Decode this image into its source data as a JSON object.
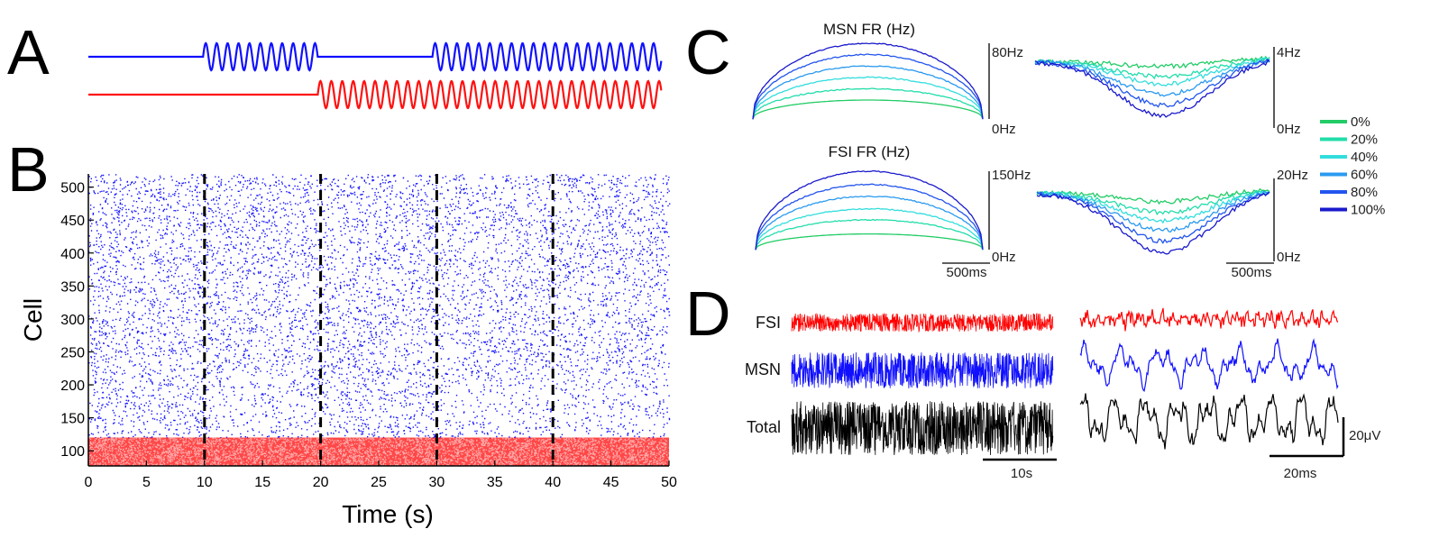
{
  "panels": {
    "a": "A",
    "b": "B",
    "c": "C",
    "d": "D"
  },
  "chart_data": [
    {
      "id": "A",
      "type": "line",
      "series": [
        {
          "name": "",
          "color": "#1010ff",
          "segments": [
            {
              "x": [
                0,
                10
              ],
              "mode": "flat"
            },
            {
              "x": [
                10,
                20
              ],
              "mode": "osc"
            },
            {
              "x": [
                20,
                30
              ],
              "mode": "flat"
            },
            {
              "x": [
                30,
                50
              ],
              "mode": "osc"
            }
          ]
        },
        {
          "name": "",
          "color": "#ff1010",
          "segments": [
            {
              "x": [
                0,
                20
              ],
              "mode": "flat"
            },
            {
              "x": [
                20,
                50
              ],
              "mode": "osc"
            }
          ]
        }
      ]
    },
    {
      "id": "B",
      "type": "scatter",
      "xlabel": "Time (s)",
      "ylabel": "Cell",
      "xlim": [
        0,
        50
      ],
      "ylim": [
        77,
        520
      ],
      "xticks": [
        "0",
        "5",
        "10",
        "15",
        "20",
        "25",
        "30",
        "35",
        "40",
        "45",
        "50"
      ],
      "yticks": [
        "100",
        "150",
        "200",
        "250",
        "300",
        "350",
        "400",
        "450",
        "500"
      ],
      "vlines": [
        10,
        20,
        30,
        40
      ],
      "populations": [
        {
          "name": "MSN",
          "color": "#1414ff",
          "cells": [
            120,
            520
          ]
        },
        {
          "name": "FSI",
          "color": "#ff1414",
          "cells": [
            77,
            120
          ]
        }
      ]
    },
    {
      "id": "C",
      "type": "line",
      "legend": {
        "placement": "right",
        "entries": [
          "0%",
          "20%",
          "40%",
          "60%",
          "80%",
          "100%"
        ],
        "colors": [
          "#22cc66",
          "#22ddaa",
          "#33dddd",
          "#2a9af0",
          "#2255ee",
          "#1a1acc"
        ]
      },
      "subplots": [
        {
          "title": "MSN FR (Hz)",
          "scale_top": "80Hz",
          "scale_bottom": "0Hz",
          "shape": "arch",
          "peaks": [
            0.25,
            0.4,
            0.55,
            0.7,
            0.85,
            1.0
          ]
        },
        {
          "title": "",
          "scale_top": "4Hz",
          "scale_bottom": "0Hz",
          "shape": "dip",
          "peaks": [
            0.1,
            0.25,
            0.35,
            0.5,
            0.65,
            0.8
          ]
        },
        {
          "title": "FSI FR (Hz)",
          "scale_top": "150Hz",
          "scale_bottom": "0Hz",
          "shape": "arch",
          "peaks": [
            0.2,
            0.38,
            0.52,
            0.68,
            0.83,
            1.0
          ]
        },
        {
          "title": "",
          "scale_top": "20Hz",
          "scale_bottom": "0Hz",
          "shape": "dip",
          "peaks": [
            0.15,
            0.3,
            0.42,
            0.55,
            0.7,
            0.85
          ]
        }
      ],
      "time_scale": "500ms"
    },
    {
      "id": "D",
      "type": "line",
      "traces": [
        {
          "name": "FSI",
          "color": "#ff0000"
        },
        {
          "name": "MSN",
          "color": "#1010ff"
        },
        {
          "name": "Total",
          "color": "#000000"
        }
      ],
      "scale_long": "10s",
      "scale_short": "20ms",
      "scale_amp": "20μV"
    }
  ]
}
